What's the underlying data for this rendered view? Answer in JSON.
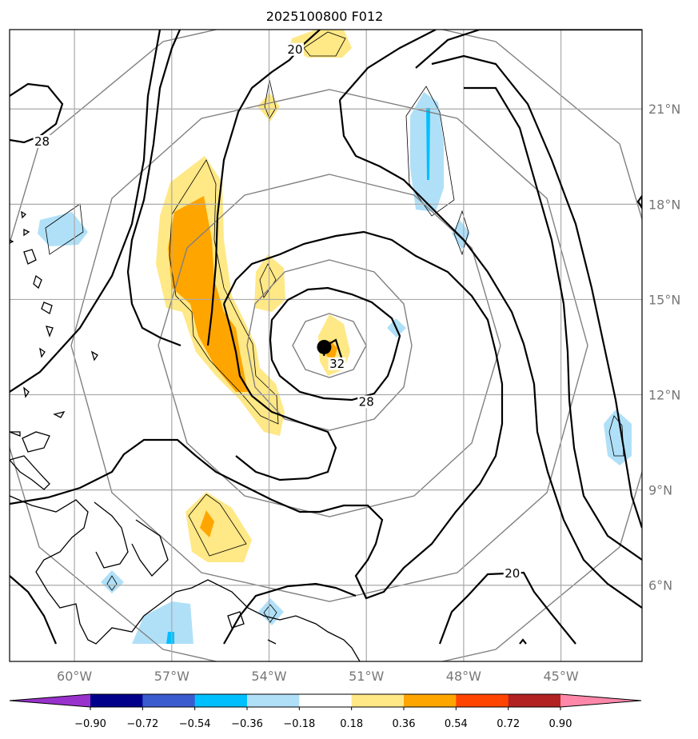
{
  "chart_data": {
    "type": "map-contour",
    "title": "2025100800 F012",
    "lon_range": [
      -62,
      -42.5
    ],
    "lat_range": [
      3.6,
      23.5
    ],
    "lon_ticks": [
      {
        "value": -60,
        "label": "60°W"
      },
      {
        "value": -57,
        "label": "57°W"
      },
      {
        "value": -54,
        "label": "54°W"
      },
      {
        "value": -51,
        "label": "51°W"
      },
      {
        "value": -48,
        "label": "48°W"
      },
      {
        "value": -45,
        "label": "45°W"
      }
    ],
    "lat_ticks": [
      {
        "value": 6,
        "label": "6°N"
      },
      {
        "value": 9,
        "label": "9°N"
      },
      {
        "value": 12,
        "label": "12°N"
      },
      {
        "value": 15,
        "label": "15°N"
      },
      {
        "value": 18,
        "label": "18°N"
      },
      {
        "value": 21,
        "label": "21°N"
      }
    ],
    "storm_center": {
      "lon": -52.3,
      "lat": 13.5
    },
    "contour_labels": [
      {
        "text": "20",
        "lon": -53.2,
        "lat": 22.8
      },
      {
        "text": "28",
        "lon": -61.0,
        "lat": 19.9
      },
      {
        "text": "32",
        "lon": -51.9,
        "lat": 12.9
      },
      {
        "text": "28",
        "lon": -51.0,
        "lat": 11.7
      },
      {
        "text": "20",
        "lon": -46.5,
        "lat": 6.3
      }
    ],
    "colorbar": {
      "bounds": [
        "−0.90",
        "−0.72",
        "−0.54",
        "−0.36",
        "−0.18",
        "0.18",
        "0.36",
        "0.54",
        "0.72",
        "0.90"
      ],
      "colors": [
        "#9932cc",
        "#00008b",
        "#3a5bcf",
        "#00bfff",
        "#b0e0f8",
        "#ffffff",
        "#ffe886",
        "#ffa500",
        "#ff4500",
        "#b22222",
        "#ff88aa"
      ]
    }
  }
}
